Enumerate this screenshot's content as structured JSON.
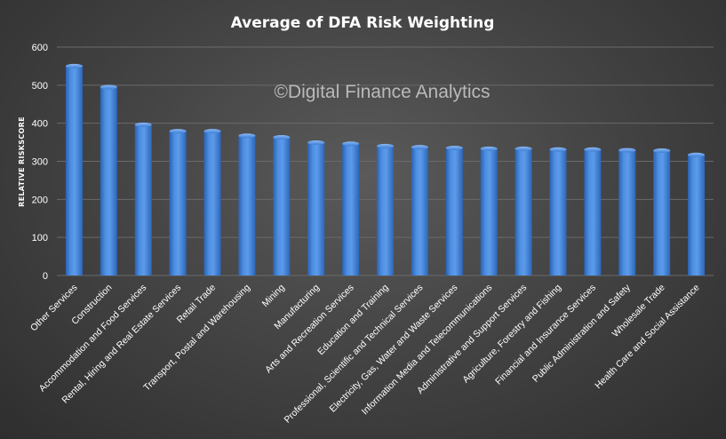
{
  "chart_data": {
    "type": "bar",
    "title": "Average of DFA Risk Weighting",
    "watermark": "©Digital Finance Analytics",
    "xlabel": "",
    "ylabel": "RELATIVE RISKSCORE",
    "ylim": [
      0,
      600
    ],
    "yticks": [
      "0",
      "100",
      "200",
      "300",
      "400",
      "500",
      "600"
    ],
    "grid": true,
    "legend": "none",
    "bar_color": "#3f7fd4",
    "categories": [
      "Other Services",
      "Construction",
      "Accommodation and Food Services",
      "Rental, Hiring and Real Estate Services",
      "Retail Trade",
      "Transport, Postal and Warehousing",
      "Mining",
      "Manufacturing",
      "Arts and Recreation Services",
      "Education and Training",
      "Professional, Scientific and Technical Services",
      "Electricity, Gas, Water and Waste Services",
      "Information Media and Telecommunications",
      "Administrative and Support Services",
      "Agriculture, Forestry and Fishing",
      "Financial and Insurance Services",
      "Public Administration and Safety",
      "Wholesale Trade",
      "Health Care and Social Assistance"
    ],
    "values": [
      550,
      495,
      396,
      379,
      379,
      367,
      363,
      349,
      346,
      340,
      337,
      335,
      333,
      333,
      331,
      331,
      329,
      328,
      317
    ]
  }
}
